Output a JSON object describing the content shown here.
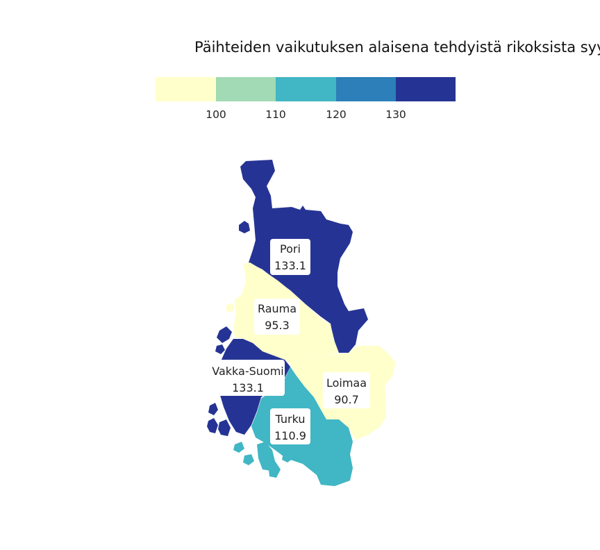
{
  "title": "Päihteiden vaikutuksen alaisena tehdyistä rikoksista syyl",
  "legend": {
    "ticks": [
      "100",
      "110",
      "120",
      "130"
    ],
    "colors": [
      "#ffffcc",
      "#a1dab4",
      "#41b6c4",
      "#2c7fb8",
      "#253494"
    ]
  },
  "chart_data": {
    "type": "choropleth",
    "title": "Päihteiden vaikutuksen alaisena tehdyistä rikoksista syyl",
    "bins": [
      {
        "min": null,
        "max": 100,
        "color": "#ffffcc"
      },
      {
        "min": 100,
        "max": 110,
        "color": "#a1dab4"
      },
      {
        "min": 110,
        "max": 120,
        "color": "#41b6c4"
      },
      {
        "min": 120,
        "max": 130,
        "color": "#2c7fb8"
      },
      {
        "min": 130,
        "max": null,
        "color": "#253494"
      }
    ],
    "regions": [
      {
        "name": "Pori",
        "value": "133.1",
        "color": "#253494"
      },
      {
        "name": "Rauma",
        "value": "95.3",
        "color": "#ffffcc"
      },
      {
        "name": "Vakka-Suomi",
        "value": "133.1",
        "color": "#253494"
      },
      {
        "name": "Loimaa",
        "value": "90.7",
        "color": "#ffffcc"
      },
      {
        "name": "Turku",
        "value": "110.9",
        "color": "#41b6c4"
      }
    ]
  }
}
